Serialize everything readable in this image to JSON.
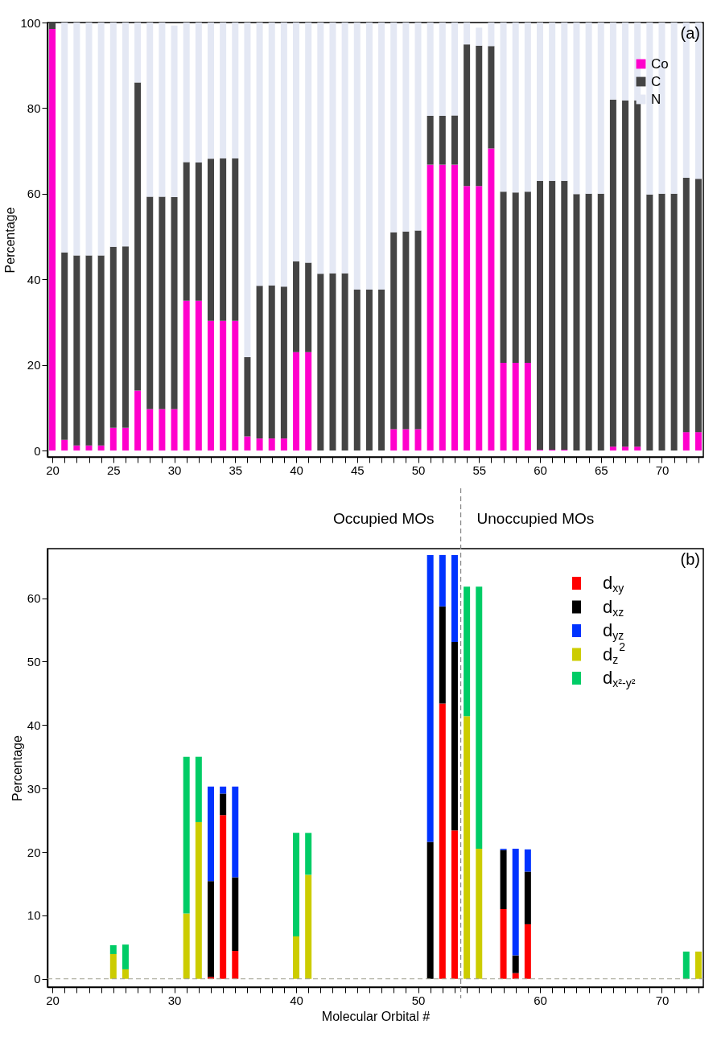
{
  "chart_data": [
    {
      "type": "bar",
      "stacked": true,
      "ylabel": "Percentage",
      "legend": "top right",
      "annotations": [
        "(a)"
      ],
      "x": [
        20,
        21,
        22,
        23,
        24,
        25,
        26,
        27,
        28,
        29,
        30,
        31,
        32,
        33,
        34,
        35,
        36,
        37,
        38,
        39,
        40,
        41,
        42,
        43,
        44,
        45,
        46,
        47,
        48,
        49,
        50,
        51,
        52,
        53,
        54,
        55,
        56,
        57,
        58,
        59,
        60,
        61,
        62,
        63,
        64,
        65,
        66,
        67,
        68,
        69,
        70,
        71,
        72,
        73
      ],
      "xlim": [
        19.6,
        73.4
      ],
      "xticks": [
        20,
        {
          "value": 21,
          "label": null
        },
        {
          "value": 22,
          "label": null
        },
        {
          "value": 23,
          "label": null
        },
        {
          "value": 24,
          "label": null
        },
        25,
        {
          "value": 26,
          "label": null
        },
        {
          "value": 27,
          "label": null
        },
        {
          "value": 28,
          "label": null
        },
        {
          "value": 29,
          "label": null
        },
        30,
        {
          "value": 31,
          "label": null
        },
        {
          "value": 32,
          "label": null
        },
        {
          "value": 33,
          "label": null
        },
        {
          "value": 34,
          "label": null
        },
        35,
        {
          "value": 36,
          "label": null
        },
        {
          "value": 37,
          "label": null
        },
        {
          "value": 38,
          "label": null
        },
        {
          "value": 39,
          "label": null
        },
        40,
        {
          "value": 41,
          "label": null
        },
        {
          "value": 42,
          "label": null
        },
        {
          "value": 43,
          "label": null
        },
        {
          "value": 44,
          "label": null
        },
        45,
        {
          "value": 46,
          "label": null
        },
        {
          "value": 47,
          "label": null
        },
        {
          "value": 48,
          "label": null
        },
        {
          "value": 49,
          "label": null
        },
        50,
        {
          "value": 51,
          "label": null
        },
        {
          "value": 52,
          "label": null
        },
        {
          "value": 53,
          "label": null
        },
        {
          "value": 54,
          "label": null
        },
        55,
        {
          "value": 56,
          "label": null
        },
        {
          "value": 57,
          "label": null
        },
        {
          "value": 58,
          "label": null
        },
        {
          "value": 59,
          "label": null
        },
        60,
        {
          "value": 61,
          "label": null
        },
        {
          "value": 62,
          "label": null
        },
        {
          "value": 63,
          "label": null
        },
        {
          "value": 64,
          "label": null
        },
        65,
        {
          "value": 66,
          "label": null
        },
        {
          "value": 67,
          "label": null
        },
        {
          "value": 68,
          "label": null
        },
        {
          "value": 69,
          "label": null
        },
        70,
        {
          "value": 71,
          "label": null
        },
        {
          "value": 72,
          "label": null
        },
        {
          "value": 73,
          "label": null
        }
      ],
      "ylim": [
        -1.5,
        100
      ],
      "yticks": [
        0,
        20,
        40,
        60,
        80,
        100
      ],
      "series": [
        {
          "name": "Co",
          "color": "#ff00cc",
          "values": [
            98.5,
            2.5,
            1.2,
            1.2,
            1.2,
            5.3,
            5.3,
            14,
            9.7,
            9.7,
            9.7,
            35,
            35,
            30.3,
            30.3,
            30.3,
            3.3,
            2.8,
            2.8,
            2.8,
            23,
            23,
            0,
            0,
            0,
            0,
            0,
            0,
            5,
            5,
            5,
            66.8,
            66.8,
            66.8,
            61.8,
            61.8,
            70.6,
            20.5,
            20.5,
            20.5,
            0.2,
            0.2,
            0.2,
            0,
            0,
            0,
            0.9,
            0.9,
            0.9,
            0,
            0,
            0,
            4.3,
            4.3
          ]
        },
        {
          "name": "C",
          "color": "#444444",
          "values": [
            1.5,
            43.8,
            44.4,
            44.4,
            44.4,
            42.3,
            42.4,
            72,
            49.6,
            49.6,
            49.5,
            32.4,
            32.3,
            37.9,
            38,
            38,
            18.5,
            35.7,
            35.8,
            35.5,
            21.2,
            20.9,
            41.3,
            41.4,
            41.4,
            37.6,
            37.6,
            37.6,
            46,
            46.2,
            46.4,
            11.4,
            11.4,
            11.5,
            33.1,
            32.8,
            23.9,
            40,
            39.8,
            40,
            62.8,
            62.8,
            62.8,
            59.9,
            60,
            60,
            81.1,
            80.9,
            80.9,
            59.8,
            60,
            60,
            59.4,
            59.2
          ]
        },
        {
          "name": "N",
          "color": "#e4e8f4",
          "values": [
            0,
            53.7,
            54.4,
            54.4,
            54.4,
            52.4,
            52.3,
            14,
            40.7,
            40.7,
            40.1,
            32.6,
            32.7,
            31.8,
            31.7,
            31.7,
            78.2,
            61.5,
            61.4,
            61.7,
            55.8,
            56.1,
            58.7,
            58.6,
            58.6,
            62.4,
            62.4,
            62.4,
            49,
            48.8,
            48.6,
            21.8,
            21.8,
            21.7,
            5.1,
            4.2,
            5.5,
            39.5,
            39.7,
            39.5,
            37,
            37,
            37,
            40.1,
            40,
            40,
            18,
            18.2,
            18.2,
            40.2,
            40,
            40,
            36.3,
            36.5
          ]
        }
      ]
    },
    {
      "type": "bar",
      "stacked": true,
      "xlabel": "Molecular Orbital #",
      "ylabel": "Percentage",
      "legend": "top right",
      "annotations": [
        "Occupied MOs",
        "Unoccupied MOs",
        "(b)"
      ],
      "x": [
        20,
        21,
        22,
        23,
        24,
        25,
        26,
        27,
        28,
        29,
        30,
        31,
        32,
        33,
        34,
        35,
        36,
        37,
        38,
        39,
        40,
        41,
        42,
        43,
        44,
        45,
        46,
        47,
        48,
        49,
        50,
        51,
        52,
        53,
        54,
        55,
        56,
        57,
        58,
        59,
        60,
        61,
        62,
        63,
        64,
        65,
        66,
        67,
        68,
        69,
        70,
        71,
        72,
        73
      ],
      "xlim": [
        19.6,
        73.4
      ],
      "xticks": [
        20,
        {
          "value": 21,
          "label": null
        },
        {
          "value": 22,
          "label": null
        },
        {
          "value": 23,
          "label": null
        },
        {
          "value": 24,
          "label": null
        },
        {
          "value": 25,
          "label": null
        },
        {
          "value": 26,
          "label": null
        },
        {
          "value": 27,
          "label": null
        },
        {
          "value": 28,
          "label": null
        },
        {
          "value": 29,
          "label": null
        },
        30,
        {
          "value": 31,
          "label": null
        },
        {
          "value": 32,
          "label": null
        },
        {
          "value": 33,
          "label": null
        },
        {
          "value": 34,
          "label": null
        },
        {
          "value": 35,
          "label": null
        },
        {
          "value": 36,
          "label": null
        },
        {
          "value": 37,
          "label": null
        },
        {
          "value": 38,
          "label": null
        },
        {
          "value": 39,
          "label": null
        },
        40,
        {
          "value": 41,
          "label": null
        },
        {
          "value": 42,
          "label": null
        },
        {
          "value": 43,
          "label": null
        },
        {
          "value": 44,
          "label": null
        },
        {
          "value": 45,
          "label": null
        },
        {
          "value": 46,
          "label": null
        },
        {
          "value": 47,
          "label": null
        },
        {
          "value": 48,
          "label": null
        },
        {
          "value": 49,
          "label": null
        },
        50,
        {
          "value": 51,
          "label": null
        },
        {
          "value": 52,
          "label": null
        },
        {
          "value": 53,
          "label": null
        },
        {
          "value": 54,
          "label": null
        },
        {
          "value": 55,
          "label": null
        },
        {
          "value": 56,
          "label": null
        },
        {
          "value": 57,
          "label": null
        },
        {
          "value": 58,
          "label": null
        },
        {
          "value": 59,
          "label": null
        },
        60,
        {
          "value": 61,
          "label": null
        },
        {
          "value": 62,
          "label": null
        },
        {
          "value": 63,
          "label": null
        },
        {
          "value": 64,
          "label": null
        },
        {
          "value": 65,
          "label": null
        },
        {
          "value": 66,
          "label": null
        },
        {
          "value": 67,
          "label": null
        },
        {
          "value": 68,
          "label": null
        },
        {
          "value": 69,
          "label": null
        },
        70,
        {
          "value": 71,
          "label": null
        },
        {
          "value": 72,
          "label": null
        },
        {
          "value": 73,
          "label": null
        }
      ],
      "ylim": [
        -1.3,
        67.8
      ],
      "yticks": [
        0,
        10,
        20,
        30,
        40,
        50,
        60
      ],
      "ref_lines": [
        {
          "axis": "x",
          "value": 53.5,
          "color": "#888888",
          "line_style": "dashed"
        },
        {
          "axis": "y",
          "value": 0,
          "color": "#a0a090",
          "line_style": "dashed"
        }
      ],
      "series": [
        {
          "name": "d$_{xy}$",
          "color": "#ff0000",
          "values": [
            0,
            0,
            0,
            0,
            0,
            0,
            0,
            0,
            0,
            0,
            0,
            0,
            0,
            0.3,
            25.8,
            4.4,
            0,
            0,
            0,
            0,
            0,
            0,
            0,
            0,
            0,
            0,
            0,
            0,
            0,
            0,
            0,
            0,
            43.4,
            23.4,
            0,
            0,
            0,
            11,
            0.9,
            8.6,
            0,
            0,
            0,
            0,
            0,
            0,
            0,
            0,
            0,
            0,
            0,
            0,
            0,
            0
          ]
        },
        {
          "name": "d$_{xz}$",
          "color": "#000000",
          "values": [
            0,
            0,
            0,
            0,
            0,
            0,
            0,
            0,
            0,
            0,
            0,
            0,
            0,
            15.1,
            3.4,
            11.6,
            0,
            0,
            0,
            0,
            0,
            0,
            0,
            0,
            0,
            0,
            0,
            0,
            0,
            0,
            0,
            21.6,
            15.3,
            29.7,
            0,
            0,
            0,
            9.3,
            2.8,
            8.3,
            0,
            0,
            0,
            0,
            0,
            0,
            0,
            0,
            0,
            0,
            0,
            0,
            0,
            0
          ]
        },
        {
          "name": "d$_{yz}$",
          "color": "#0033ff",
          "values": [
            0,
            0,
            0,
            0,
            0,
            0,
            0,
            0,
            0,
            0,
            0,
            0,
            0,
            14.9,
            1.1,
            14.3,
            0,
            0,
            0,
            0,
            0,
            0,
            0,
            0,
            0,
            0,
            0,
            0,
            0,
            0,
            0,
            45.2,
            8.1,
            13.7,
            0,
            0,
            0,
            0.2,
            16.8,
            3.5,
            0,
            0,
            0,
            0,
            0,
            0,
            0,
            0,
            0,
            0,
            0,
            0,
            0,
            0
          ]
        },
        {
          "name": "d$_{z}$$^{2}$",
          "color": "#cccc00",
          "values": [
            0,
            0,
            0,
            0,
            0,
            3.9,
            1.5,
            0,
            0,
            0,
            0,
            10.3,
            24.7,
            0,
            0,
            0,
            0,
            0,
            0,
            0,
            6.7,
            16.4,
            0,
            0,
            0,
            0,
            0,
            0,
            0,
            0,
            0,
            0,
            0,
            0,
            41.4,
            20.5,
            0,
            0,
            0,
            0,
            0,
            0,
            0,
            0,
            0,
            0,
            0,
            0,
            0,
            0,
            0,
            0,
            0,
            4.3
          ]
        },
        {
          "name": "d$_{x²-y²}$",
          "color": "#00cc66",
          "values": [
            0,
            0,
            0,
            0,
            0,
            1.4,
            3.9,
            0,
            0,
            0,
            0,
            24.7,
            10.3,
            0,
            0,
            0,
            0,
            0,
            0,
            0,
            16.3,
            6.6,
            0,
            0,
            0,
            0,
            0,
            0,
            0,
            0,
            0,
            0,
            0,
            0,
            20.4,
            41.3,
            0,
            0,
            0,
            0,
            0,
            0,
            0,
            0,
            0,
            0,
            0,
            0,
            0,
            0,
            0,
            0,
            4.3,
            0
          ]
        }
      ]
    }
  ]
}
